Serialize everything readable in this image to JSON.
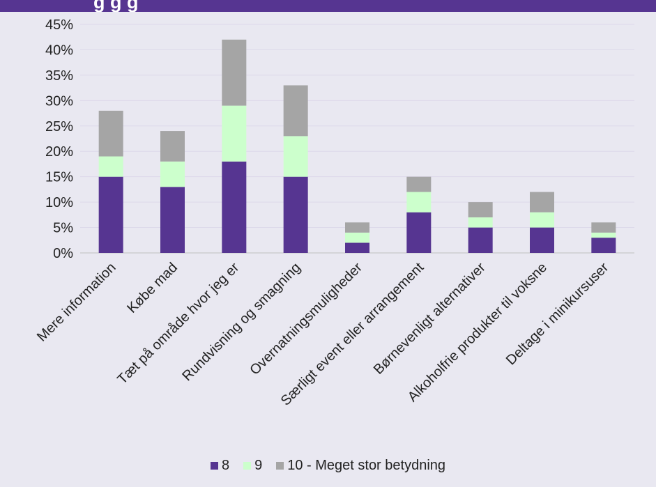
{
  "header": {
    "title_fragment": "g  g  g"
  },
  "colors": {
    "background": "#e9e8f1",
    "header": "#563591",
    "grid": "#ddd9ea"
  },
  "chart_data": {
    "type": "bar",
    "stacked": true,
    "categories": [
      "Mere information",
      "Købe mad",
      "Tæt på område hvor jeg er",
      "Rundvisning og smagning",
      "Overnatningsmuligheder",
      "Særligt event eller arrangement",
      "Børnevenligt alternativer",
      "Alkoholfrie produkter til voksne",
      "Deltage i minikursuser"
    ],
    "series": [
      {
        "name": "8",
        "color": "#563591",
        "values": [
          15,
          13,
          18,
          15,
          2,
          8,
          5,
          5,
          3
        ]
      },
      {
        "name": "9",
        "color": "#ccffcc",
        "values": [
          4,
          5,
          11,
          8,
          2,
          4,
          2,
          3,
          1
        ]
      },
      {
        "name": "10 - Meget stor betydning",
        "color": "#a5a5a5",
        "values": [
          9,
          6,
          13,
          10,
          2,
          3,
          3,
          4,
          2
        ]
      }
    ],
    "ylim": [
      0,
      45
    ],
    "yticks": [
      0,
      5,
      10,
      15,
      20,
      25,
      30,
      35,
      40,
      45
    ],
    "ytick_labels": [
      "0%",
      "5%",
      "10%",
      "15%",
      "20%",
      "25%",
      "30%",
      "35%",
      "40%",
      "45%"
    ],
    "grid": true,
    "legend_position": "bottom"
  }
}
